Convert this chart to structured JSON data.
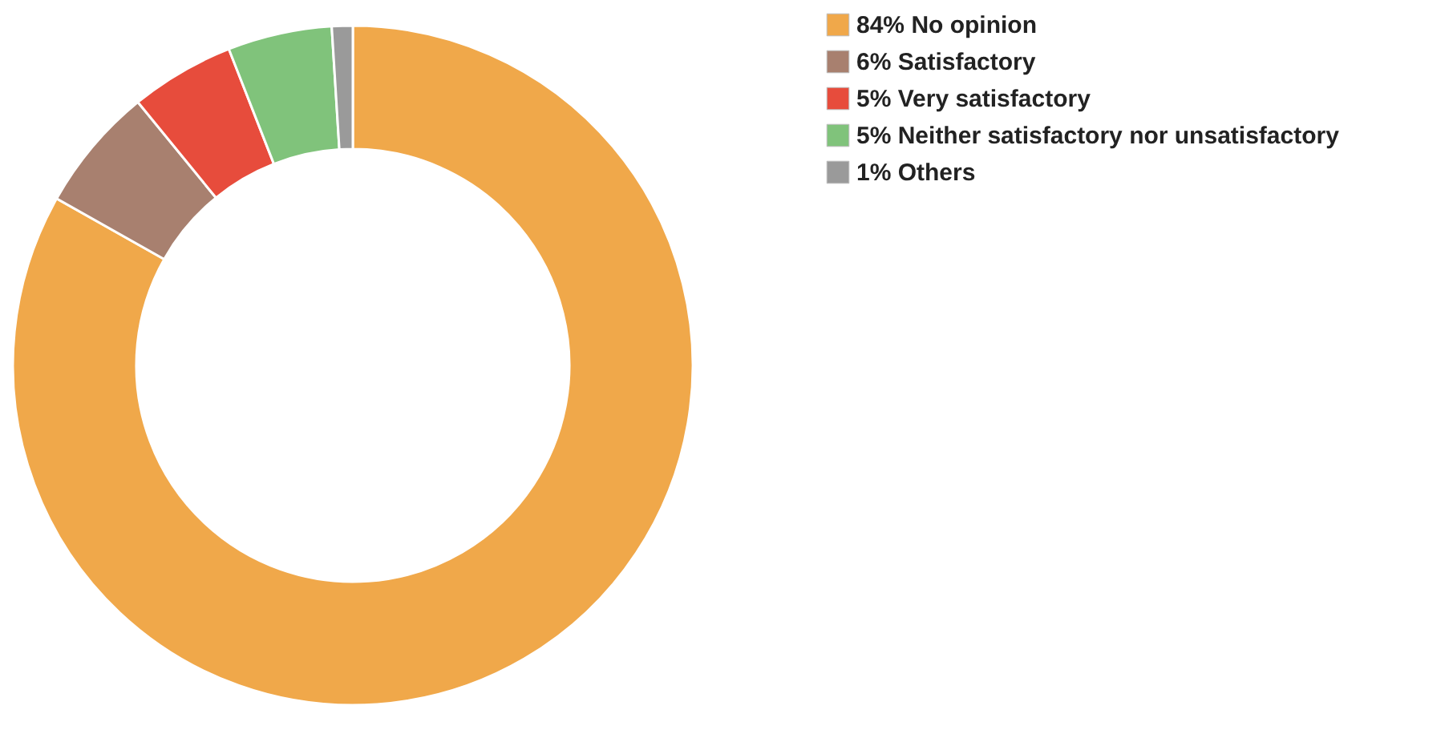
{
  "chart_data": {
    "type": "donut",
    "categories": [
      "No opinion",
      "Satisfactory",
      "Very satisfactory",
      "Neither satisfactory nor unsatisfactory",
      "Others"
    ],
    "values": [
      84,
      6,
      5,
      5,
      1
    ],
    "value_labels": [
      "84%",
      "6%",
      "5%",
      "5%",
      "1%"
    ],
    "colors": [
      "#f0a84a",
      "#a8806f",
      "#e74c3c",
      "#80c37b",
      "#9a9a9a"
    ],
    "legend": "top right"
  }
}
